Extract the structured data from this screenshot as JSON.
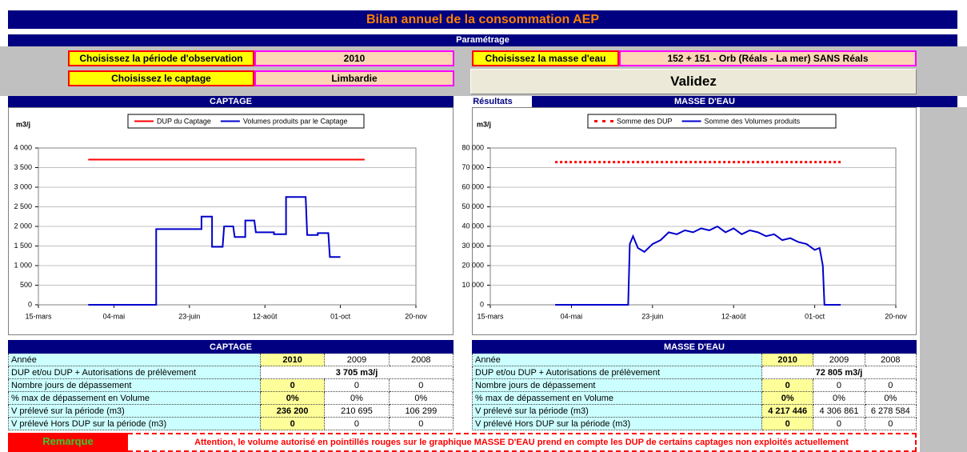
{
  "header": {
    "title": "Bilan annuel de la consommation AEP",
    "section": "Paramétrage"
  },
  "params": {
    "period_label": "Choisissez la période d'observation",
    "period_value": "2010",
    "water_label": "Choisissez la masse d'eau",
    "water_value": "152 + 151 - Orb (Réals - La mer) SANS Réals",
    "captage_label": "Choisissez le captage",
    "captage_value": "Limbardie",
    "button": "Validez"
  },
  "results": {
    "left": "CAPTAGE",
    "middle": "Résultats",
    "right": "MASSE D'EAU"
  },
  "chart_data": [
    {
      "type": "line",
      "y_label": "m3/j",
      "xlim": [
        0,
        250
      ],
      "xticks": [
        {
          "value": 0,
          "label": "15-mars"
        },
        {
          "value": 50,
          "label": "04-mai"
        },
        {
          "value": 100,
          "label": "23-juin"
        },
        {
          "value": 150,
          "label": "12-août"
        },
        {
          "value": 200,
          "label": "01-oct"
        },
        {
          "value": 250,
          "label": "20-nov"
        }
      ],
      "ylim": [
        0,
        4000
      ],
      "yticks": [
        0,
        500,
        {
          "value": 1000,
          "label": "1 000"
        },
        {
          "value": 1500,
          "label": "1 500"
        },
        {
          "value": 2000,
          "label": "2 000"
        },
        {
          "value": 2500,
          "label": "2 500"
        },
        {
          "value": 3000,
          "label": "3 000"
        },
        {
          "value": 3500,
          "label": "3 500"
        },
        {
          "value": 4000,
          "label": "4 000"
        }
      ],
      "grid": true,
      "series": [
        {
          "name": "DUP du Captage",
          "color": "#ff0000",
          "dash": false,
          "x": [
            33,
            216
          ],
          "values": [
            3705,
            3705
          ]
        },
        {
          "name": "Volumes produits par le Captage",
          "color": "#0000cc",
          "dash": false,
          "x": [
            33,
            78,
            78,
            108,
            108,
            115,
            115,
            122,
            123,
            129,
            130,
            137,
            137,
            143,
            144,
            156,
            156,
            164,
            164,
            177,
            178,
            185,
            185,
            192,
            193,
            200
          ],
          "values": [
            0,
            0,
            1930,
            1930,
            2250,
            2250,
            1480,
            1480,
            2000,
            2000,
            1730,
            1730,
            2150,
            2150,
            1850,
            1850,
            1800,
            1800,
            2750,
            2750,
            1780,
            1780,
            1830,
            1830,
            1220,
            1220
          ]
        }
      ]
    },
    {
      "type": "line",
      "y_label": "m3/j",
      "xlim": [
        0,
        250
      ],
      "xticks": [
        {
          "value": 0,
          "label": "15-mars"
        },
        {
          "value": 50,
          "label": "04-mai"
        },
        {
          "value": 100,
          "label": "23-juin"
        },
        {
          "value": 150,
          "label": "12-août"
        },
        {
          "value": 200,
          "label": "01-oct"
        },
        {
          "value": 250,
          "label": "20-nov"
        }
      ],
      "ylim": [
        0,
        80000
      ],
      "yticks": [
        0,
        {
          "value": 10000,
          "label": "10 000"
        },
        {
          "value": 20000,
          "label": "20 000"
        },
        {
          "value": 30000,
          "label": "30 000"
        },
        {
          "value": 40000,
          "label": "40 000"
        },
        {
          "value": 50000,
          "label": "50 000"
        },
        {
          "value": 60000,
          "label": "60 000"
        },
        {
          "value": 70000,
          "label": "70 000"
        },
        {
          "value": 80000,
          "label": "80 000"
        }
      ],
      "grid": true,
      "series": [
        {
          "name": "Somme des DUP",
          "color": "#ff0000",
          "dash": true,
          "x": [
            40,
            216
          ],
          "values": [
            72805,
            72805
          ]
        },
        {
          "name": "Somme des Volumes produits",
          "color": "#0000cc",
          "dash": false,
          "x": [
            40,
            85,
            86,
            88,
            91,
            95,
            100,
            105,
            110,
            115,
            120,
            125,
            130,
            135,
            140,
            145,
            150,
            155,
            160,
            165,
            170,
            175,
            180,
            185,
            190,
            195,
            200,
            203,
            205,
            206,
            216
          ],
          "values": [
            0,
            0,
            31000,
            35000,
            29000,
            27000,
            31000,
            33000,
            37000,
            36000,
            38000,
            37000,
            39000,
            38000,
            40000,
            37000,
            39000,
            36000,
            38000,
            37000,
            35000,
            36000,
            33000,
            34000,
            32000,
            31000,
            28000,
            29000,
            20000,
            0,
            0
          ]
        }
      ]
    }
  ],
  "tables": [
    {
      "title": "CAPTAGE",
      "rows": [
        [
          "Année",
          "2010",
          "2009",
          "2008"
        ],
        [
          "DUP et/ou DUP + Autorisations de prélèvement",
          "3 705 m3/j"
        ],
        [
          "Nombre jours de dépassement",
          "0",
          "0",
          "0"
        ],
        [
          "% max de dépassement en Volume",
          "0%",
          "0%",
          "0%"
        ],
        [
          "V prélevé sur la période (m3)",
          "236 200",
          "210 695",
          "106 299"
        ],
        [
          "V prélevé Hors DUP sur la période (m3)",
          "0",
          "0",
          "0"
        ]
      ]
    },
    {
      "title": "MASSE D'EAU",
      "rows": [
        [
          "Année",
          "2010",
          "2009",
          "2008"
        ],
        [
          "DUP et/ou DUP + Autorisations de prélèvement",
          "72 805 m3/j"
        ],
        [
          "Nombre jours de dépassement",
          "0",
          "0",
          "0"
        ],
        [
          "% max de dépassement en Volume",
          "0%",
          "0%",
          "0%"
        ],
        [
          "V prélevé sur la période (m3)",
          "4 217 446",
          "4 306 861",
          "6 278 584"
        ],
        [
          "V prélevé Hors DUP sur la période (m3)",
          "0",
          "0",
          "0"
        ]
      ]
    }
  ],
  "remark": {
    "label": "Remarque",
    "text": "Attention, le volume autorisé en pointillés rouges sur le graphique MASSE D'EAU prend en compte les DUP de certains captages non exploités actuellement"
  }
}
